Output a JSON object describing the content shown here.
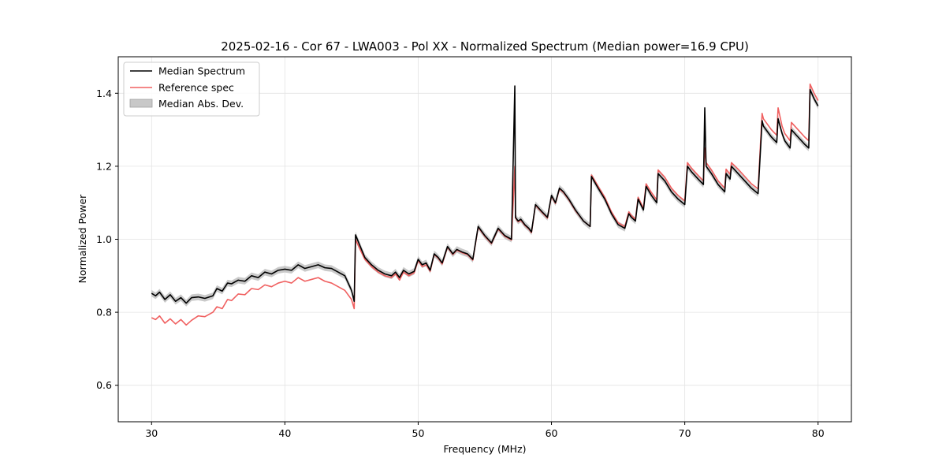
{
  "chart_data": {
    "type": "line",
    "title": "2025-02-16 - Cor 67 - LWA003 - Pol XX - Normalized Spectrum (Median power=16.9 CPU)",
    "xlabel": "Frequency (MHz)",
    "ylabel": "Normalized Power",
    "xlim": [
      27.5,
      82.5
    ],
    "ylim": [
      0.5,
      1.5
    ],
    "xticks": [
      30,
      40,
      50,
      60,
      70,
      80
    ],
    "yticks": [
      0.6,
      0.8,
      1.0,
      1.2,
      1.4
    ],
    "xtick_labels": [
      "30",
      "40",
      "50",
      "60",
      "70",
      "80"
    ],
    "ytick_labels": [
      "0.6",
      "0.8",
      "1.0",
      "1.2",
      "1.4"
    ],
    "grid": true,
    "legend": {
      "position": "top-left",
      "entries": [
        {
          "label": "Median Spectrum",
          "kind": "line",
          "color": "#000000"
        },
        {
          "label": "Reference spec",
          "kind": "line",
          "color": "#f06060"
        },
        {
          "label": "Median Abs. Dev.",
          "kind": "patch",
          "color": "#b0b0b0"
        }
      ]
    },
    "mad_width": 0.009,
    "series": [
      {
        "name": "Median Spectrum",
        "color": "#000000",
        "x": [
          30.0,
          30.3,
          30.6,
          31.0,
          31.4,
          31.8,
          32.2,
          32.6,
          33.0,
          33.5,
          34.0,
          34.6,
          34.9,
          35.3,
          35.7,
          36.0,
          36.5,
          37.0,
          37.5,
          38.0,
          38.5,
          39.0,
          39.5,
          40.0,
          40.5,
          41.0,
          41.5,
          42.0,
          42.5,
          43.0,
          43.5,
          44.0,
          44.5,
          45.0,
          45.2,
          45.3,
          45.6,
          46.0,
          46.5,
          47.0,
          47.5,
          48.0,
          48.3,
          48.6,
          48.9,
          49.3,
          49.7,
          50.0,
          50.3,
          50.6,
          50.9,
          51.2,
          51.5,
          51.8,
          52.2,
          52.6,
          52.9,
          53.3,
          53.7,
          54.1,
          54.5,
          54.6,
          55.0,
          55.5,
          56.0,
          56.5,
          57.0,
          57.25,
          57.3,
          57.5,
          57.7,
          58.0,
          58.3,
          58.5,
          58.8,
          59.3,
          59.7,
          60.0,
          60.3,
          60.6,
          60.9,
          61.3,
          61.8,
          62.4,
          62.9,
          63.0,
          63.5,
          64.0,
          64.5,
          65.0,
          65.5,
          65.8,
          66.0,
          66.3,
          66.5,
          66.9,
          67.1,
          67.5,
          67.9,
          68.0,
          68.5,
          69.0,
          69.5,
          70.0,
          70.2,
          70.5,
          71.0,
          71.4,
          71.5,
          71.6,
          72.0,
          72.5,
          73.0,
          73.1,
          73.4,
          73.5,
          74.0,
          74.5,
          75.0,
          75.5,
          75.8,
          75.9,
          76.5,
          76.9,
          77.0,
          77.3,
          77.5,
          77.9,
          78.0,
          78.5,
          79.0,
          79.3,
          79.4,
          79.7,
          80.0
        ],
        "y": [
          0.852,
          0.845,
          0.855,
          0.835,
          0.848,
          0.83,
          0.84,
          0.825,
          0.84,
          0.842,
          0.838,
          0.845,
          0.865,
          0.858,
          0.88,
          0.878,
          0.888,
          0.885,
          0.9,
          0.895,
          0.91,
          0.905,
          0.915,
          0.918,
          0.915,
          0.93,
          0.92,
          0.925,
          0.93,
          0.922,
          0.92,
          0.91,
          0.9,
          0.86,
          0.83,
          1.012,
          0.985,
          0.95,
          0.93,
          0.915,
          0.905,
          0.9,
          0.91,
          0.895,
          0.915,
          0.905,
          0.912,
          0.945,
          0.93,
          0.935,
          0.915,
          0.96,
          0.95,
          0.935,
          0.98,
          0.96,
          0.972,
          0.965,
          0.96,
          0.945,
          1.035,
          1.03,
          1.01,
          0.99,
          1.03,
          1.01,
          1.0,
          1.42,
          1.06,
          1.05,
          1.055,
          1.04,
          1.03,
          1.02,
          1.095,
          1.075,
          1.06,
          1.12,
          1.1,
          1.14,
          1.13,
          1.11,
          1.08,
          1.05,
          1.035,
          1.172,
          1.14,
          1.11,
          1.07,
          1.04,
          1.03,
          1.07,
          1.06,
          1.05,
          1.11,
          1.08,
          1.145,
          1.12,
          1.1,
          1.18,
          1.16,
          1.13,
          1.11,
          1.095,
          1.2,
          1.185,
          1.165,
          1.15,
          1.36,
          1.2,
          1.18,
          1.15,
          1.13,
          1.18,
          1.165,
          1.2,
          1.18,
          1.16,
          1.14,
          1.125,
          1.325,
          1.31,
          1.28,
          1.265,
          1.33,
          1.29,
          1.27,
          1.25,
          1.3,
          1.28,
          1.26,
          1.25,
          1.41,
          1.385,
          1.365
        ]
      },
      {
        "name": "Reference spec",
        "color": "#f06060",
        "x": [
          30.0,
          30.3,
          30.6,
          31.0,
          31.4,
          31.8,
          32.2,
          32.6,
          33.0,
          33.5,
          34.0,
          34.6,
          34.9,
          35.3,
          35.7,
          36.0,
          36.5,
          37.0,
          37.5,
          38.0,
          38.5,
          39.0,
          39.5,
          40.0,
          40.5,
          41.0,
          41.5,
          42.0,
          42.5,
          43.0,
          43.5,
          44.0,
          44.5,
          45.0,
          45.2,
          45.3,
          45.6,
          46.0,
          46.5,
          47.0,
          47.5,
          48.0,
          48.3,
          48.6,
          48.9,
          49.3,
          49.7,
          50.0,
          50.3,
          50.6,
          50.9,
          51.2,
          51.5,
          51.8,
          52.2,
          52.6,
          52.9,
          53.3,
          53.7,
          54.1,
          54.5,
          54.6,
          55.0,
          55.5,
          56.0,
          56.5,
          57.0,
          57.25,
          57.3,
          57.5,
          57.7,
          58.0,
          58.3,
          58.5,
          58.8,
          59.3,
          59.7,
          60.0,
          60.3,
          60.6,
          60.9,
          61.3,
          61.8,
          62.4,
          62.9,
          63.0,
          63.5,
          64.0,
          64.5,
          65.0,
          65.5,
          65.8,
          66.0,
          66.3,
          66.5,
          66.9,
          67.1,
          67.5,
          67.9,
          68.0,
          68.5,
          69.0,
          69.5,
          70.0,
          70.2,
          70.5,
          71.0,
          71.4,
          71.5,
          71.6,
          72.0,
          72.5,
          73.0,
          73.1,
          73.4,
          73.5,
          74.0,
          74.5,
          75.0,
          75.5,
          75.8,
          75.9,
          76.5,
          76.9,
          77.0,
          77.3,
          77.5,
          77.9,
          78.0,
          78.5,
          79.0,
          79.3,
          79.4,
          79.7,
          80.0
        ],
        "y": [
          0.785,
          0.78,
          0.79,
          0.77,
          0.782,
          0.768,
          0.78,
          0.765,
          0.778,
          0.79,
          0.788,
          0.8,
          0.815,
          0.81,
          0.835,
          0.832,
          0.85,
          0.848,
          0.865,
          0.862,
          0.875,
          0.87,
          0.88,
          0.885,
          0.88,
          0.895,
          0.885,
          0.89,
          0.895,
          0.885,
          0.88,
          0.87,
          0.86,
          0.835,
          0.81,
          1.0,
          0.975,
          0.945,
          0.925,
          0.91,
          0.9,
          0.895,
          0.905,
          0.888,
          0.91,
          0.9,
          0.908,
          0.942,
          0.925,
          0.93,
          0.912,
          0.958,
          0.948,
          0.932,
          0.978,
          0.958,
          0.97,
          0.963,
          0.958,
          0.943,
          1.033,
          1.028,
          1.008,
          0.988,
          1.028,
          1.008,
          0.998,
          1.2,
          1.058,
          1.048,
          1.052,
          1.038,
          1.028,
          1.018,
          1.093,
          1.073,
          1.058,
          1.118,
          1.098,
          1.138,
          1.128,
          1.108,
          1.078,
          1.05,
          1.035,
          1.176,
          1.145,
          1.115,
          1.075,
          1.045,
          1.035,
          1.075,
          1.065,
          1.055,
          1.115,
          1.085,
          1.152,
          1.128,
          1.108,
          1.19,
          1.17,
          1.14,
          1.12,
          1.105,
          1.21,
          1.195,
          1.175,
          1.16,
          1.25,
          1.21,
          1.19,
          1.16,
          1.14,
          1.192,
          1.178,
          1.21,
          1.192,
          1.172,
          1.152,
          1.138,
          1.345,
          1.33,
          1.3,
          1.285,
          1.36,
          1.31,
          1.29,
          1.27,
          1.32,
          1.3,
          1.28,
          1.27,
          1.425,
          1.4,
          1.38
        ]
      }
    ]
  }
}
